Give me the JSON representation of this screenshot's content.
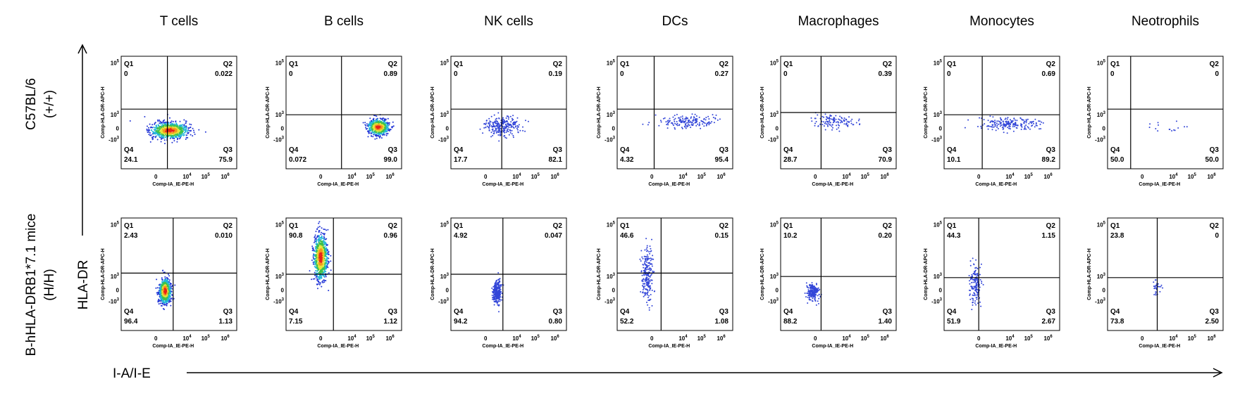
{
  "columns": [
    "T cells",
    "B cells",
    "NK cells",
    "DCs",
    "Macrophages",
    "Monocytes",
    "Neotrophils"
  ],
  "rows": [
    {
      "name": "C57BL/6",
      "genotype": "(+/+)"
    },
    {
      "name": "B-hHLA-DRB1*7.1 mice",
      "genotype": "(H/H)"
    }
  ],
  "y_axis_label": "HLA-DR",
  "x_axis_label": "I-A/I-E",
  "panel_y_label": "Comp-HLA-DR-APC-H",
  "panel_x_label": "Comp-IA_IE-PE-H",
  "quadrant_names": [
    "Q1",
    "Q2",
    "Q3",
    "Q4"
  ],
  "y_tick_labels": [
    {
      "base": "10",
      "exp": "5"
    },
    {
      "base": "10",
      "exp": "3"
    },
    {
      "base": "0"
    },
    {
      "base": "-10",
      "exp": "3"
    }
  ],
  "x_tick_labels": [
    {
      "base": "0"
    },
    {
      "base": "10",
      "exp": "4"
    },
    {
      "base": "10",
      "exp": "5"
    },
    {
      "base": "10",
      "exp": "6"
    }
  ],
  "panels": [
    [
      [
        "0",
        "0.022",
        "75.9",
        "24.1"
      ],
      [
        "0",
        "0.89",
        "99.0",
        "0.072"
      ],
      [
        "0",
        "0.19",
        "82.1",
        "17.7"
      ],
      [
        "0",
        "0.27",
        "95.4",
        "4.32"
      ],
      [
        "0",
        "0.39",
        "70.9",
        "28.7"
      ],
      [
        "0",
        "0.69",
        "89.2",
        "10.1"
      ],
      [
        "0",
        "0",
        "50.0",
        "50.0"
      ]
    ],
    [
      [
        "2.43",
        "0.010",
        "1.13",
        "96.4"
      ],
      [
        "90.8",
        "0.96",
        "1.12",
        "7.15"
      ],
      [
        "4.92",
        "0.047",
        "0.80",
        "94.2"
      ],
      [
        "46.6",
        "0.15",
        "1.08",
        "52.2"
      ],
      [
        "10.2",
        "0.20",
        "1.40",
        "88.2"
      ],
      [
        "44.3",
        "1.15",
        "2.67",
        "51.9"
      ],
      [
        "23.8",
        "0",
        "2.50",
        "73.8"
      ]
    ]
  ]
}
